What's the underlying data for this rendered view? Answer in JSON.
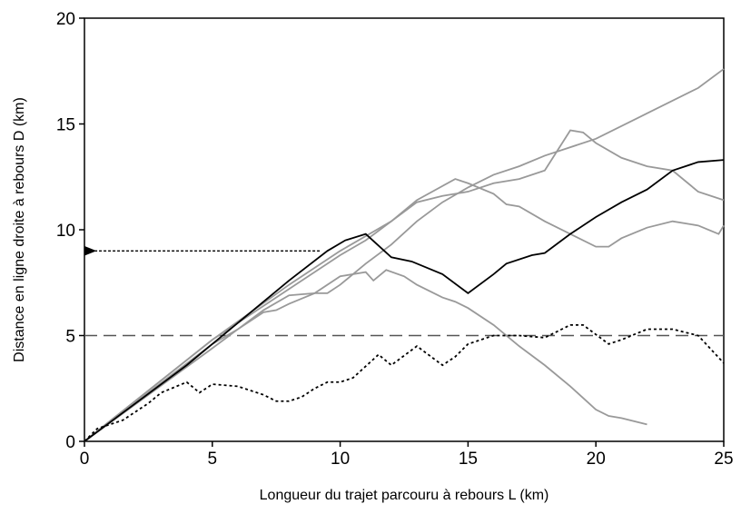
{
  "chart_data": {
    "type": "line",
    "xlabel": "Longueur du trajet parcouru à rebours L (km)",
    "ylabel": "Distance en ligne droite à rebours D (km)",
    "xlim": [
      0,
      25
    ],
    "ylim": [
      0,
      20
    ],
    "xticks": [
      0,
      5,
      10,
      15,
      20,
      25
    ],
    "yticks": [
      0,
      5,
      10,
      15,
      20
    ],
    "grid": false,
    "reference_line": {
      "y": 5,
      "color": "#555555",
      "style": "dashed"
    },
    "arrow": {
      "x": 9.2,
      "y": 9,
      "color": "#000000"
    },
    "series": [
      {
        "color": "#999999",
        "style": "solid",
        "x": [
          0,
          5,
          7,
          8,
          9,
          9.5,
          10,
          11,
          12,
          13,
          14,
          15,
          16,
          17,
          18,
          20,
          22,
          24,
          25
        ],
        "values": [
          0,
          4.4,
          6.2,
          6.9,
          7,
          7,
          7.4,
          8.4,
          9.3,
          10.4,
          11.3,
          12,
          12.6,
          13,
          13.5,
          14.3,
          15.5,
          16.7,
          17.6
        ]
      },
      {
        "color": "#999999",
        "style": "solid",
        "x": [
          0,
          5,
          8,
          10,
          11,
          13,
          14,
          15,
          16,
          17,
          18,
          19,
          19.5,
          20,
          21,
          22,
          23,
          24,
          25
        ],
        "values": [
          0,
          4.8,
          7.2,
          8.8,
          9.5,
          11.3,
          11.6,
          11.8,
          12.2,
          12.4,
          12.8,
          14.7,
          14.6,
          14.1,
          13.4,
          13,
          12.8,
          11.8,
          11.4
        ]
      },
      {
        "color": "#999999",
        "style": "solid",
        "x": [
          0,
          5,
          8,
          10,
          12,
          13,
          14.5,
          15,
          16,
          16.5,
          17,
          18,
          19,
          20,
          20.5,
          21,
          22,
          23,
          24,
          24.8,
          25
        ],
        "values": [
          0,
          4.8,
          7.4,
          9,
          10.4,
          11.4,
          12.4,
          12.2,
          11.7,
          11.2,
          11.1,
          10.4,
          9.8,
          9.2,
          9.2,
          9.6,
          10.1,
          10.4,
          10.2,
          9.8,
          10.2
        ]
      },
      {
        "color": "#999999",
        "style": "solid",
        "x": [
          0,
          5,
          6,
          7,
          7.5,
          8,
          9,
          10,
          11,
          11.3,
          11.8,
          12.5,
          13,
          14,
          14.5,
          15,
          16,
          17,
          18,
          19,
          20,
          20.5,
          21,
          22
        ],
        "values": [
          0,
          4.6,
          5.3,
          6.1,
          6.2,
          6.5,
          7,
          7.8,
          8,
          7.6,
          8.1,
          7.8,
          7.4,
          6.8,
          6.6,
          6.3,
          5.5,
          4.5,
          3.6,
          2.6,
          1.5,
          1.2,
          1.1,
          0.8
        ]
      },
      {
        "color": "#000000",
        "style": "solid",
        "x": [
          0,
          2,
          4,
          6,
          8,
          9.5,
          10.2,
          11,
          12,
          12.8,
          14,
          15,
          16,
          16.5,
          17.5,
          18,
          19,
          20,
          21,
          22,
          23,
          24,
          25
        ],
        "values": [
          0,
          1.8,
          3.6,
          5.6,
          7.6,
          9,
          9.5,
          9.8,
          8.7,
          8.5,
          7.9,
          7,
          7.9,
          8.4,
          8.8,
          8.9,
          9.8,
          10.6,
          11.3,
          11.9,
          12.8,
          13.2,
          13.3
        ]
      },
      {
        "color": "#000000",
        "style": "dotted",
        "x": [
          0,
          0.5,
          1.5,
          2.5,
          3,
          4,
          4.5,
          5,
          6,
          7,
          7.5,
          8,
          8.5,
          9,
          9.5,
          10,
          10.5,
          11.5,
          12,
          13,
          14,
          14.5,
          15,
          16,
          17,
          18,
          19,
          19.5,
          20.5,
          21,
          22,
          23,
          24,
          25
        ],
        "values": [
          0,
          0.6,
          1,
          1.8,
          2.3,
          2.8,
          2.3,
          2.7,
          2.6,
          2.2,
          1.9,
          1.9,
          2.1,
          2.5,
          2.8,
          2.8,
          3,
          4.1,
          3.6,
          4.5,
          3.6,
          4,
          4.6,
          5,
          5,
          4.9,
          5.5,
          5.5,
          4.6,
          4.8,
          5.3,
          5.3,
          5,
          3.7
        ]
      }
    ]
  }
}
